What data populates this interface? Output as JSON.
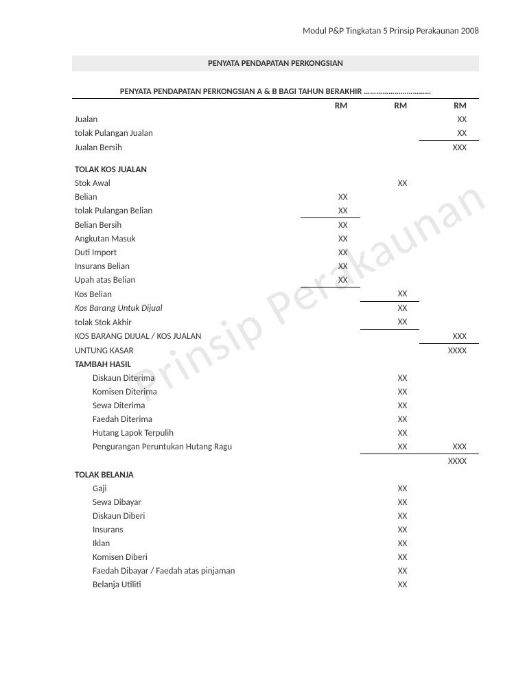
{
  "header": "Modul P&P Tingkatan 5 Prinsip Perakaunan 2008",
  "watermark": "Prinsip Perakaunan",
  "title": "PENYATA PENDAPATAN PERKONGSIAN",
  "subtitle": "PENYATA PENDAPATAN PERKONGSIAN A & B BAGI TAHUN BERAKHIR ……………………………",
  "colHeaders": {
    "c1": "RM",
    "c2": "RM",
    "c3": "RM"
  },
  "rows": {
    "jualan": "Jualan",
    "tolakPulanganJualan": "tolak Pulangan Jualan",
    "jualanBersih": "Jualan Bersih",
    "tolakKosJualan": "TOLAK KOS JUALAN",
    "stokAwal": "Stok Awal",
    "belian": "Belian",
    "tolakPulanganBelian": "tolak Pulangan Belian",
    "belianBersih": "Belian Bersih",
    "angkutanMasuk": "Angkutan Masuk",
    "dutiImport": "Duti Import",
    "insuransBelian": "Insurans Belian",
    "upahAtasBelian": "Upah atas Belian",
    "kosBelian": "Kos Belian",
    "kosBarangUntukDijual": "Kos Barang Untuk Dijual",
    "tolakStokAkhir": "tolak Stok Akhir",
    "kosBarangDijual": "KOS BARANG DIJUAL / KOS JUALAN",
    "untungKasar": "UNTUNG KASAR",
    "tambahHasil": "TAMBAH HASIL",
    "diskaunDiterima": "Diskaun Diterima",
    "komisenDiterima": "Komisen Diterima",
    "sewaDiterima": "Sewa Diterima",
    "faedahDiterima": "Faedah Diterima",
    "hutangLapokTerpulih": "Hutang Lapok Tererpulih",
    "hutangLapokTerpulihFix": "Hutang Lapok Terpulih",
    "penguranganPHR": "Pengurangan Peruntukan Hutang Ragu",
    "tolakBelanja": "TOLAK BELANJA",
    "gaji": "Gaji",
    "sewaDibayar": "Sewa Dibayar",
    "diskaunDiberi": "Diskaun Diberi",
    "insurans": "Insurans",
    "iklan": "Iklan",
    "komisenDiberi": "Komisen Diberi",
    "faedahDibayar": "Faedah Dibayar / Faedah atas pinjaman",
    "belanjaUtiliti": "Belanja Utiliti"
  },
  "vals": {
    "xx": "XX",
    "xxx": "XXX",
    "xxxx": "XXXX"
  },
  "styling": {
    "pageWidth": 768,
    "pageHeight": 994,
    "fontFamily": "Calibri",
    "baseFontSize": 13,
    "titleBandBg": "#ededed",
    "textColor": "#333333",
    "watermarkColor": "#e8e8e8",
    "watermarkFontSize": 70,
    "watermarkRotation": -30,
    "borderColor": "#000000"
  }
}
